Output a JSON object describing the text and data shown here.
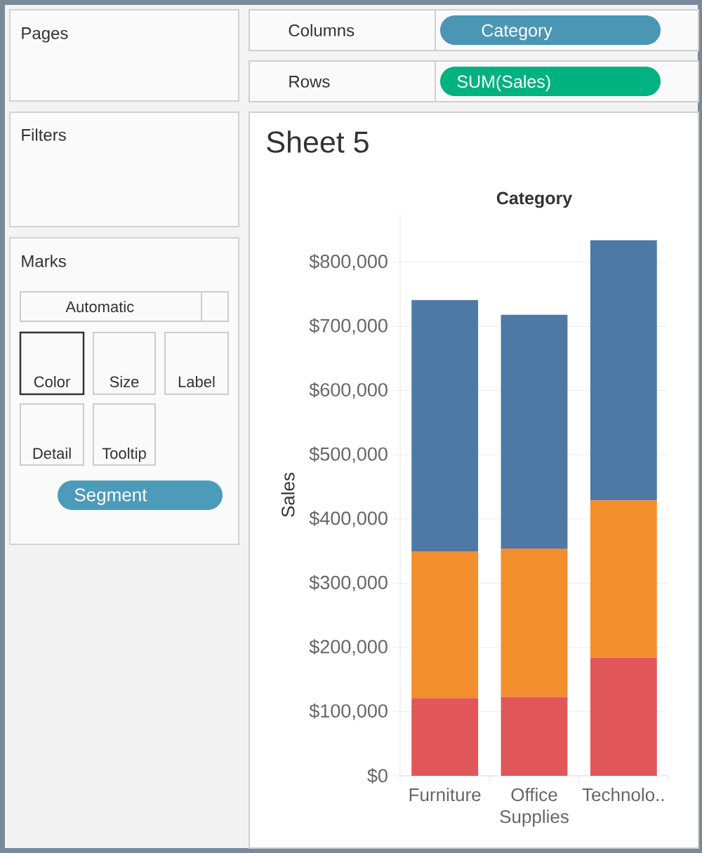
{
  "chart_data": [
    {
      "type": "other",
      "annotations": [
        "Pages",
        "Columns",
        "Category",
        "Rows",
        "SUM(Sales)",
        "Filters",
        "Marks",
        "Automatic",
        "Color",
        "Size",
        "Label",
        "Detail",
        "Tooltip",
        "Segment"
      ]
    },
    {
      "type": "bar",
      "title": "Sheet 5",
      "xlabel": "Category",
      "ylabel": "Sales",
      "categories": [
        "Furniture",
        "Office Supplies",
        "Technolo.."
      ],
      "stacked": true,
      "series": [
        {
          "color": "#e15759",
          "values": [
            121000,
            123000,
            184000
          ]
        },
        {
          "color": "#f28e2b",
          "values": [
            228000,
            231000,
            245000
          ]
        },
        {
          "color": "#4e79a7",
          "values": [
            392000,
            364000,
            405000
          ]
        }
      ],
      "ylim": [
        0,
        875000
      ],
      "yticks": [
        {
          "value": 0,
          "label": "$0"
        },
        {
          "value": 100000,
          "label": "$100,000"
        },
        {
          "value": 200000,
          "label": "$200,000"
        },
        {
          "value": 300000,
          "label": "$300,000"
        },
        {
          "value": 400000,
          "label": "$400,000"
        },
        {
          "value": 500000,
          "label": "$500,000"
        },
        {
          "value": 600000,
          "label": "$600,000"
        },
        {
          "value": 700000,
          "label": "$700,000"
        },
        {
          "value": 800000,
          "label": "$800,000"
        }
      ],
      "grid": "y"
    }
  ]
}
